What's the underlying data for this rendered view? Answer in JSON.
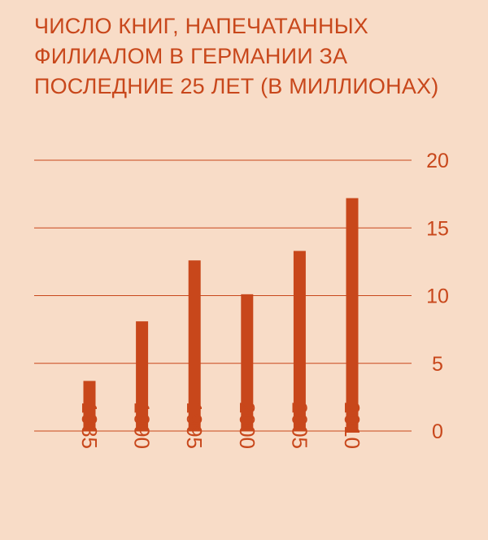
{
  "title_lines": [
    "ЧИСЛО КНИГ, НАПЕЧАТАННЫХ",
    "ФИЛИАЛОМ В ГЕРМАНИИ ЗА",
    "ПОСЛЕДНИЕ 25 ЛЕТ (В МИЛЛИОНАХ)"
  ],
  "colors": {
    "background": "#f8dcc7",
    "accent": "#c8471b"
  },
  "chart_data": {
    "type": "bar",
    "title": "ЧИСЛО КНИГ, НАПЕЧАТАННЫХ ФИЛИАЛОМ В ГЕРМАНИИ ЗА ПОСЛЕДНИЕ 25 ЛЕТ (В МИЛЛИОНАХ)",
    "categories": [
      "1985",
      "1990",
      "1995",
      "2000",
      "2005",
      "2010"
    ],
    "values": [
      3.7,
      8.1,
      12.6,
      10.1,
      13.3,
      17.2
    ],
    "ylim": [
      0,
      20
    ],
    "yticks": [
      "0",
      "5",
      "10",
      "15",
      "20"
    ],
    "y_axis_side": "right",
    "grid": true,
    "xlabel": "",
    "ylabel": "",
    "legend": "none"
  }
}
